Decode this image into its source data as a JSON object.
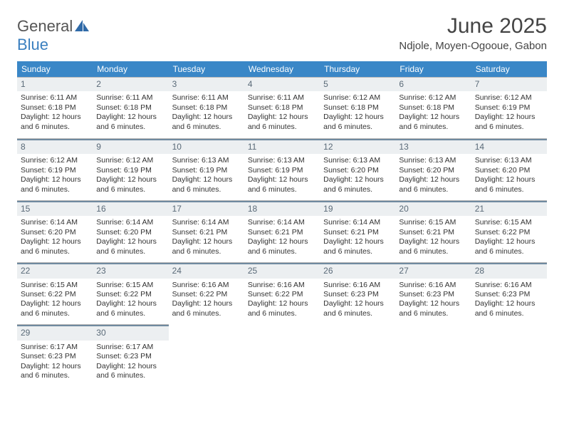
{
  "colors": {
    "header_bg": "#3a87c7",
    "header_text": "#ffffff",
    "daynum_bg": "#eceff1",
    "daynum_text": "#5a6a78",
    "daynum_border": "#6f8aa0",
    "cell_border": "#b8b8b8",
    "body_text": "#333333",
    "logo_general": "#555555",
    "logo_blue": "#3a7fbf",
    "page_bg": "#ffffff"
  },
  "logo": {
    "part1": "General",
    "part2": "Blue"
  },
  "title": "June 2025",
  "location": "Ndjole, Moyen-Ogooue, Gabon",
  "day_names": [
    "Sunday",
    "Monday",
    "Tuesday",
    "Wednesday",
    "Thursday",
    "Friday",
    "Saturday"
  ],
  "labels": {
    "sunrise": "Sunrise:",
    "sunset": "Sunset:",
    "daylight": "Daylight:"
  },
  "weeks": [
    [
      {
        "day": "1",
        "sunrise": "6:11 AM",
        "sunset": "6:18 PM",
        "daylight": "12 hours and 6 minutes."
      },
      {
        "day": "2",
        "sunrise": "6:11 AM",
        "sunset": "6:18 PM",
        "daylight": "12 hours and 6 minutes."
      },
      {
        "day": "3",
        "sunrise": "6:11 AM",
        "sunset": "6:18 PM",
        "daylight": "12 hours and 6 minutes."
      },
      {
        "day": "4",
        "sunrise": "6:11 AM",
        "sunset": "6:18 PM",
        "daylight": "12 hours and 6 minutes."
      },
      {
        "day": "5",
        "sunrise": "6:12 AM",
        "sunset": "6:18 PM",
        "daylight": "12 hours and 6 minutes."
      },
      {
        "day": "6",
        "sunrise": "6:12 AM",
        "sunset": "6:18 PM",
        "daylight": "12 hours and 6 minutes."
      },
      {
        "day": "7",
        "sunrise": "6:12 AM",
        "sunset": "6:19 PM",
        "daylight": "12 hours and 6 minutes."
      }
    ],
    [
      {
        "day": "8",
        "sunrise": "6:12 AM",
        "sunset": "6:19 PM",
        "daylight": "12 hours and 6 minutes."
      },
      {
        "day": "9",
        "sunrise": "6:12 AM",
        "sunset": "6:19 PM",
        "daylight": "12 hours and 6 minutes."
      },
      {
        "day": "10",
        "sunrise": "6:13 AM",
        "sunset": "6:19 PM",
        "daylight": "12 hours and 6 minutes."
      },
      {
        "day": "11",
        "sunrise": "6:13 AM",
        "sunset": "6:19 PM",
        "daylight": "12 hours and 6 minutes."
      },
      {
        "day": "12",
        "sunrise": "6:13 AM",
        "sunset": "6:20 PM",
        "daylight": "12 hours and 6 minutes."
      },
      {
        "day": "13",
        "sunrise": "6:13 AM",
        "sunset": "6:20 PM",
        "daylight": "12 hours and 6 minutes."
      },
      {
        "day": "14",
        "sunrise": "6:13 AM",
        "sunset": "6:20 PM",
        "daylight": "12 hours and 6 minutes."
      }
    ],
    [
      {
        "day": "15",
        "sunrise": "6:14 AM",
        "sunset": "6:20 PM",
        "daylight": "12 hours and 6 minutes."
      },
      {
        "day": "16",
        "sunrise": "6:14 AM",
        "sunset": "6:20 PM",
        "daylight": "12 hours and 6 minutes."
      },
      {
        "day": "17",
        "sunrise": "6:14 AM",
        "sunset": "6:21 PM",
        "daylight": "12 hours and 6 minutes."
      },
      {
        "day": "18",
        "sunrise": "6:14 AM",
        "sunset": "6:21 PM",
        "daylight": "12 hours and 6 minutes."
      },
      {
        "day": "19",
        "sunrise": "6:14 AM",
        "sunset": "6:21 PM",
        "daylight": "12 hours and 6 minutes."
      },
      {
        "day": "20",
        "sunrise": "6:15 AM",
        "sunset": "6:21 PM",
        "daylight": "12 hours and 6 minutes."
      },
      {
        "day": "21",
        "sunrise": "6:15 AM",
        "sunset": "6:22 PM",
        "daylight": "12 hours and 6 minutes."
      }
    ],
    [
      {
        "day": "22",
        "sunrise": "6:15 AM",
        "sunset": "6:22 PM",
        "daylight": "12 hours and 6 minutes."
      },
      {
        "day": "23",
        "sunrise": "6:15 AM",
        "sunset": "6:22 PM",
        "daylight": "12 hours and 6 minutes."
      },
      {
        "day": "24",
        "sunrise": "6:16 AM",
        "sunset": "6:22 PM",
        "daylight": "12 hours and 6 minutes."
      },
      {
        "day": "25",
        "sunrise": "6:16 AM",
        "sunset": "6:22 PM",
        "daylight": "12 hours and 6 minutes."
      },
      {
        "day": "26",
        "sunrise": "6:16 AM",
        "sunset": "6:23 PM",
        "daylight": "12 hours and 6 minutes."
      },
      {
        "day": "27",
        "sunrise": "6:16 AM",
        "sunset": "6:23 PM",
        "daylight": "12 hours and 6 minutes."
      },
      {
        "day": "28",
        "sunrise": "6:16 AM",
        "sunset": "6:23 PM",
        "daylight": "12 hours and 6 minutes."
      }
    ],
    [
      {
        "day": "29",
        "sunrise": "6:17 AM",
        "sunset": "6:23 PM",
        "daylight": "12 hours and 6 minutes."
      },
      {
        "day": "30",
        "sunrise": "6:17 AM",
        "sunset": "6:23 PM",
        "daylight": "12 hours and 6 minutes."
      },
      null,
      null,
      null,
      null,
      null
    ]
  ]
}
